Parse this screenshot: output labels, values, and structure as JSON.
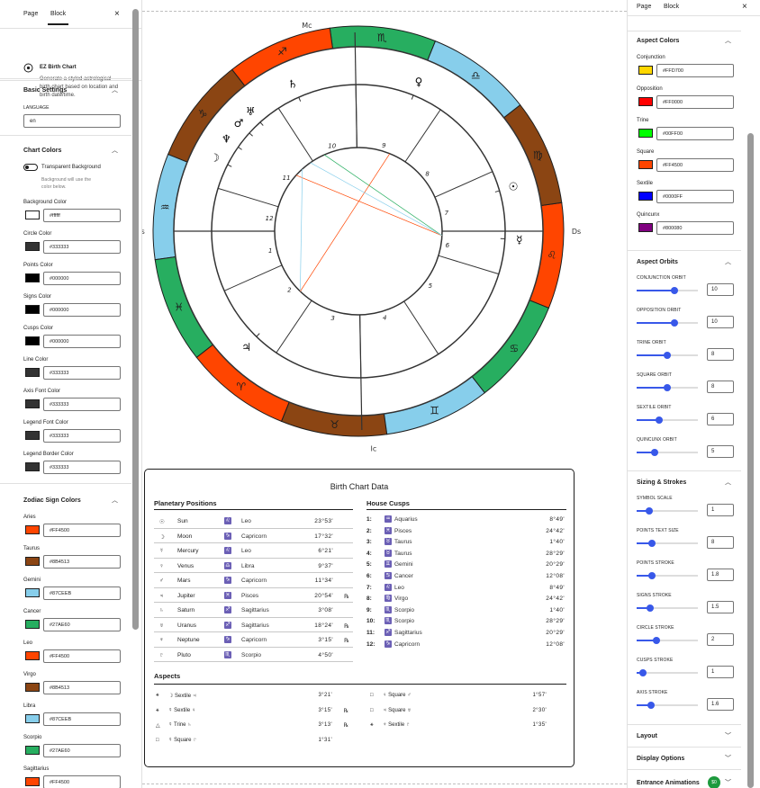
{
  "left_panel": {
    "tabs": [
      "Page",
      "Block"
    ],
    "close": "×",
    "block": {
      "title": "EZ Birth Chart",
      "description": "Generate a styled astrological birth chart based on location and birth date/time."
    },
    "basic_settings": {
      "title": "Basic Settings",
      "language_label": "LANGUAGE",
      "language_value": "en"
    },
    "chart_colors": {
      "title": "Chart Colors",
      "transparent_label": "Transparent Background",
      "transparent_help": "Background will use the color below.",
      "items": [
        {
          "label": "Background Color",
          "value": "#ffffff",
          "color": "#ffffff"
        },
        {
          "label": "Circle Color",
          "value": "#333333",
          "color": "#333333"
        },
        {
          "label": "Points Color",
          "value": "#000000",
          "color": "#000000"
        },
        {
          "label": "Signs Color",
          "value": "#000000",
          "color": "#000000"
        },
        {
          "label": "Cusps Color",
          "value": "#000000",
          "color": "#000000"
        },
        {
          "label": "Line Color",
          "value": "#333333",
          "color": "#333333"
        },
        {
          "label": "Axis Font Color",
          "value": "#333333",
          "color": "#333333"
        },
        {
          "label": "Legend Font Color",
          "value": "#333333",
          "color": "#333333"
        },
        {
          "label": "Legend Border Color",
          "value": "#333333",
          "color": "#333333"
        }
      ]
    },
    "zodiac_colors": {
      "title": "Zodiac Sign Colors",
      "items": [
        {
          "label": "Aries",
          "value": "#FF4500",
          "color": "#FF4500"
        },
        {
          "label": "Taurus",
          "value": "#8B4513",
          "color": "#8B4513"
        },
        {
          "label": "Gemini",
          "value": "#87CEEB",
          "color": "#87CEEB"
        },
        {
          "label": "Cancer",
          "value": "#27AE60",
          "color": "#27AE60"
        },
        {
          "label": "Leo",
          "value": "#FF4500",
          "color": "#FF4500"
        },
        {
          "label": "Virgo",
          "value": "#8B4513",
          "color": "#8B4513"
        },
        {
          "label": "Libra",
          "value": "#87CEEB",
          "color": "#87CEEB"
        },
        {
          "label": "Scorpio",
          "value": "#27AE60",
          "color": "#27AE60"
        },
        {
          "label": "Sagittarius",
          "value": "#FF4500",
          "color": "#FF4500"
        }
      ]
    }
  },
  "right_panel": {
    "tabs": [
      "Page",
      "Block"
    ],
    "close": "×",
    "aspect_colors": {
      "title": "Aspect Colors",
      "items": [
        {
          "label": "Conjunction",
          "value": "#FFD700",
          "color": "#FFD700"
        },
        {
          "label": "Opposition",
          "value": "#FF0000",
          "color": "#FF0000"
        },
        {
          "label": "Trine",
          "value": "#00FF00",
          "color": "#00FF00"
        },
        {
          "label": "Square",
          "value": "#FF4500",
          "color": "#FF4500"
        },
        {
          "label": "Sextile",
          "value": "#0000FF",
          "color": "#0000FF"
        },
        {
          "label": "Quincunx",
          "value": "#800080",
          "color": "#800080"
        }
      ]
    },
    "aspect_orbits": {
      "title": "Aspect Orbits",
      "items": [
        {
          "label": "CONJUNCTION ORBIT",
          "value": "10",
          "level": 0.62
        },
        {
          "label": "OPPOSITION ORBIT",
          "value": "10",
          "level": 0.62
        },
        {
          "label": "TRINE ORBIT",
          "value": "8",
          "level": 0.5
        },
        {
          "label": "SQUARE ORBIT",
          "value": "8",
          "level": 0.5
        },
        {
          "label": "SEXTILE ORBIT",
          "value": "6",
          "level": 0.37
        },
        {
          "label": "QUINCUNX ORBIT",
          "value": "5",
          "level": 0.3
        }
      ]
    },
    "sizing": {
      "title": "Sizing & Strokes",
      "items": [
        {
          "label": "SYMBOL SCALE",
          "value": "1",
          "level": 0.2
        },
        {
          "label": "POINTS TEXT SIZE",
          "value": "8",
          "level": 0.25
        },
        {
          "label": "POINTS STROKE",
          "value": "1.8",
          "level": 0.25
        },
        {
          "label": "SIGNS STROKE",
          "value": "1.5",
          "level": 0.22
        },
        {
          "label": "CIRCLE STROKE",
          "value": "2",
          "level": 0.32
        },
        {
          "label": "CUSPS STROKE",
          "value": "1",
          "level": 0.1
        },
        {
          "label": "AXIS STROKE",
          "value": "1.6",
          "level": 0.24
        }
      ]
    },
    "layout": {
      "title": "Layout"
    },
    "display_options": {
      "title": "Display Options"
    },
    "entrance_animations": {
      "title": "Entrance Animations",
      "badge": "$0"
    }
  },
  "chart": {
    "axis": {
      "mc": "Mc",
      "ic": "Ic",
      "as": "As",
      "ds": "Ds"
    },
    "house_numbers": [
      "1",
      "2",
      "3",
      "4",
      "5",
      "6",
      "7",
      "8",
      "9",
      "10",
      "11",
      "12"
    ]
  },
  "birth_data": {
    "title": "Birth Chart Data",
    "planetary_title": "Planetary Positions",
    "house_title": "House Cusps",
    "aspects_title": "Aspects",
    "planets": [
      {
        "glyph": "☉",
        "name": "Sun",
        "sign_glyph": "♌",
        "sign": "Leo",
        "deg": "23°53'",
        "retro": ""
      },
      {
        "glyph": "☽",
        "name": "Moon",
        "sign_glyph": "♑",
        "sign": "Capricorn",
        "deg": "17°32'",
        "retro": ""
      },
      {
        "glyph": "☿",
        "name": "Mercury",
        "sign_glyph": "♌",
        "sign": "Leo",
        "deg": "6°21'",
        "retro": ""
      },
      {
        "glyph": "♀",
        "name": "Venus",
        "sign_glyph": "♎",
        "sign": "Libra",
        "deg": "9°37'",
        "retro": ""
      },
      {
        "glyph": "♂",
        "name": "Mars",
        "sign_glyph": "♑",
        "sign": "Capricorn",
        "deg": "11°34'",
        "retro": ""
      },
      {
        "glyph": "♃",
        "name": "Jupiter",
        "sign_glyph": "♓",
        "sign": "Pisces",
        "deg": "20°54'",
        "retro": "℞"
      },
      {
        "glyph": "♄",
        "name": "Saturn",
        "sign_glyph": "♐",
        "sign": "Sagittarius",
        "deg": "3°08'",
        "retro": ""
      },
      {
        "glyph": "♅",
        "name": "Uranus",
        "sign_glyph": "♐",
        "sign": "Sagittarius",
        "deg": "18°24'",
        "retro": "℞"
      },
      {
        "glyph": "♆",
        "name": "Neptune",
        "sign_glyph": "♑",
        "sign": "Capricorn",
        "deg": "3°15'",
        "retro": "℞"
      },
      {
        "glyph": "♇",
        "name": "Pluto",
        "sign_glyph": "♏",
        "sign": "Scorpio",
        "deg": "4°50'",
        "retro": ""
      }
    ],
    "houses": [
      {
        "num": "1:",
        "sign_glyph": "♒",
        "sign": "Aquarius",
        "deg": "8°49'"
      },
      {
        "num": "2:",
        "sign_glyph": "♓",
        "sign": "Pisces",
        "deg": "24°42'"
      },
      {
        "num": "3:",
        "sign_glyph": "♉",
        "sign": "Taurus",
        "deg": "1°40'"
      },
      {
        "num": "4:",
        "sign_glyph": "♉",
        "sign": "Taurus",
        "deg": "28°29'"
      },
      {
        "num": "5:",
        "sign_glyph": "♊",
        "sign": "Gemini",
        "deg": "20°29'"
      },
      {
        "num": "6:",
        "sign_glyph": "♋",
        "sign": "Cancer",
        "deg": "12°08'"
      },
      {
        "num": "7:",
        "sign_glyph": "♌",
        "sign": "Leo",
        "deg": "8°49'"
      },
      {
        "num": "8:",
        "sign_glyph": "♍",
        "sign": "Virgo",
        "deg": "24°42'"
      },
      {
        "num": "9:",
        "sign_glyph": "♏",
        "sign": "Scorpio",
        "deg": "1°40'"
      },
      {
        "num": "10:",
        "sign_glyph": "♏",
        "sign": "Scorpio",
        "deg": "28°29'"
      },
      {
        "num": "11:",
        "sign_glyph": "♐",
        "sign": "Sagittarius",
        "deg": "20°29'"
      },
      {
        "num": "12:",
        "sign_glyph": "♑",
        "sign": "Capricorn",
        "deg": "12°08'"
      }
    ],
    "aspects": [
      {
        "sym": "⚹",
        "text": "☽ Sextile ♃",
        "orb": "3°21'",
        "retro": ""
      },
      {
        "sym": "□",
        "text": "♀ Square ♂",
        "orb": "1°57'",
        "retro": ""
      },
      {
        "sym": "⚹",
        "text": "☿ Sextile ♀",
        "orb": "3°15'",
        "retro": "℞"
      },
      {
        "sym": "□",
        "text": "♃ Square ♅",
        "orb": "2°30'",
        "retro": ""
      },
      {
        "sym": "△",
        "text": "☿ Trine ♄",
        "orb": "3°13'",
        "retro": "℞"
      },
      {
        "sym": "⚹",
        "text": "♆ Sextile ♇",
        "orb": "1°35'",
        "retro": ""
      },
      {
        "sym": "□",
        "text": "☿ Square ♇",
        "orb": "1°31'",
        "retro": ""
      }
    ]
  }
}
